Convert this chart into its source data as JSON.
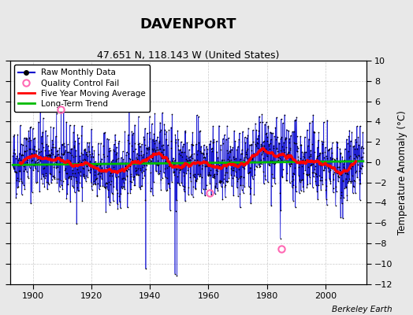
{
  "title": "DAVENPORT",
  "subtitle": "47.651 N, 118.143 W (United States)",
  "ylabel": "Temperature Anomaly (°C)",
  "credit": "Berkeley Earth",
  "year_start": 1893,
  "year_end": 2013,
  "ylim": [
    -12,
    10
  ],
  "yticks": [
    -12,
    -10,
    -8,
    -6,
    -4,
    -2,
    0,
    2,
    4,
    6,
    8,
    10
  ],
  "xticks": [
    1900,
    1920,
    1940,
    1960,
    1980,
    2000
  ],
  "raw_color": "#0000cc",
  "marker_color": "#000000",
  "vline_color": "#9999ff",
  "qc_fail_color": "#ff69b4",
  "moving_avg_color": "#ff0000",
  "trend_color": "#00bb00",
  "bg_color": "#e8e8e8",
  "plot_bg_color": "#ffffff",
  "grid_color": "#bbbbbb",
  "qc_fail_years": [
    1909.5,
    1960.5,
    1985.0
  ],
  "qc_fail_values": [
    5.2,
    -3.0,
    -8.5
  ],
  "trend_slope": 0.003,
  "trend_intercept": -0.1,
  "seed": 42
}
